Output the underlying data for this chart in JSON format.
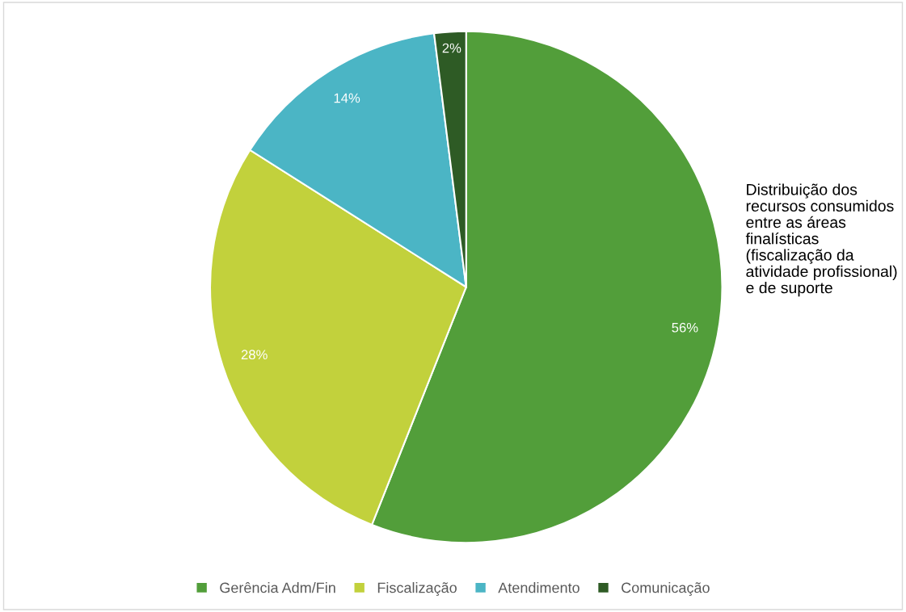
{
  "chart_data": {
    "type": "pie",
    "title": "Distribuição dos recursos consumidos entre as áreas finalísticas (fiscalização da atividade profissional) e de suporte",
    "categories": [
      "Gerência Adm/Fin",
      "Fiscalização",
      "Atendimento",
      "Comunicação"
    ],
    "values": [
      56,
      28,
      14,
      2
    ],
    "colors": [
      "#529e3a",
      "#c2d13c",
      "#4bb5c5",
      "#2e5b25"
    ],
    "value_labels": [
      "56%",
      "28%",
      "14%",
      "2%"
    ],
    "legend": "bottom"
  }
}
